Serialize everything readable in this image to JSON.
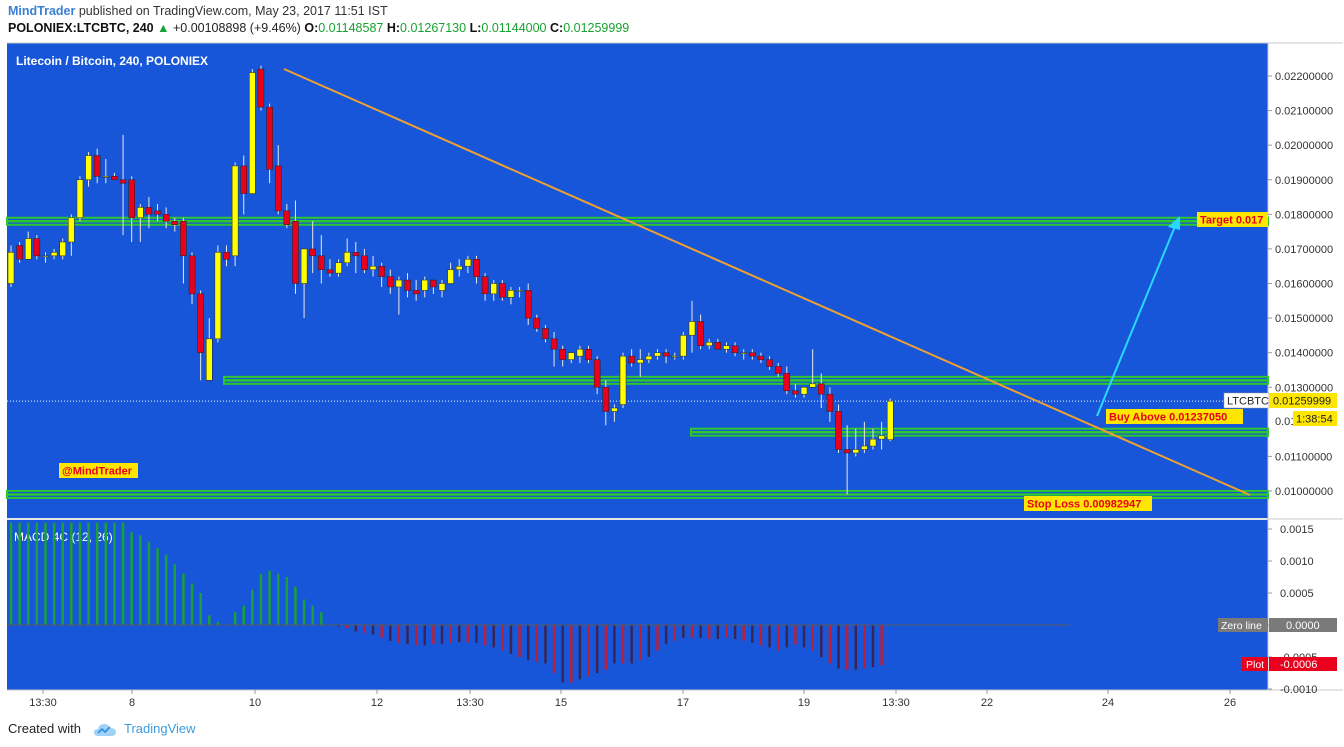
{
  "header": {
    "author": "MindTrader",
    "published_text": "published on TradingView.com, May 23, 2017 11:51 IST",
    "symbol_line": "POLONIEX:LTCBTC, 240",
    "change_arrow": "▲",
    "change": "+0.00108898 (+9.46%)",
    "open_label": "O:",
    "open": "0.01148587",
    "high_label": "H:",
    "high": "0.01267130",
    "low_label": "L:",
    "low": "0.01144000",
    "close_label": "C:",
    "close": "0.01259999"
  },
  "footer": {
    "created_with": "Created with",
    "brand": "TradingView"
  },
  "colors": {
    "background": "#1756d8",
    "candle_up": "#ffff00",
    "candle_down": "#e8001c",
    "sr_line": "#2ec72e",
    "trend_line": "#f0a030",
    "arrow": "#29d8ff",
    "macd_positive": "#1aa03a",
    "macd_negative_dark": "#3a2455",
    "macd_negative_red": "#b8203a"
  },
  "chart_data": [
    {
      "type": "candlestick",
      "title": "Litecoin / Bitcoin, 240, POLONIEX",
      "x_tick_labels": [
        "13:30",
        "8",
        "10",
        "12",
        "13:30",
        "15",
        "17",
        "19",
        "13:30",
        "22",
        "24",
        "26"
      ],
      "ylim": [
        0.0096,
        0.0228
      ],
      "y_tick_labels": [
        "0.02200000",
        "0.02100000",
        "0.02000000",
        "0.01900000",
        "0.01800000",
        "0.01700000",
        "0.01600000",
        "0.01500000",
        "0.01400000",
        "0.01300000",
        "0.01100000",
        "0.01000000"
      ],
      "y_ticks": [
        0.022,
        0.021,
        0.02,
        0.019,
        0.018,
        0.017,
        0.016,
        0.015,
        0.014,
        0.013,
        0.011,
        0.01
      ],
      "grid": false,
      "candles": [
        [
          0.016,
          0.0171,
          0.0159,
          0.0169
        ],
        [
          0.0171,
          0.0172,
          0.0166,
          0.0167
        ],
        [
          0.0167,
          0.0175,
          0.0167,
          0.0173
        ],
        [
          0.0173,
          0.0174,
          0.0167,
          0.0168
        ],
        [
          0.0168,
          0.0169,
          0.0166,
          0.0168
        ],
        [
          0.0168,
          0.017,
          0.0167,
          0.0169
        ],
        [
          0.0168,
          0.0173,
          0.0167,
          0.0172
        ],
        [
          0.0172,
          0.018,
          0.0168,
          0.0179
        ],
        [
          0.0179,
          0.0191,
          0.0178,
          0.019
        ],
        [
          0.019,
          0.0198,
          0.0188,
          0.0197
        ],
        [
          0.0197,
          0.0199,
          0.0189,
          0.0191
        ],
        [
          0.0191,
          0.0196,
          0.0189,
          0.0191
        ],
        [
          0.0191,
          0.0192,
          0.019,
          0.019
        ],
        [
          0.019,
          0.0203,
          0.0174,
          0.0189
        ],
        [
          0.019,
          0.0191,
          0.0172,
          0.0179
        ],
        [
          0.0179,
          0.0183,
          0.0172,
          0.0182
        ],
        [
          0.0182,
          0.0185,
          0.0176,
          0.018
        ],
        [
          0.0181,
          0.0183,
          0.0178,
          0.018
        ],
        [
          0.018,
          0.0182,
          0.0176,
          0.0178
        ],
        [
          0.0178,
          0.0179,
          0.0175,
          0.0177
        ],
        [
          0.0178,
          0.0179,
          0.016,
          0.0168
        ],
        [
          0.0168,
          0.0169,
          0.0154,
          0.0157
        ],
        [
          0.0157,
          0.0158,
          0.0132,
          0.014
        ],
        [
          0.0132,
          0.015,
          0.0132,
          0.0144
        ],
        [
          0.0144,
          0.0171,
          0.0143,
          0.0169
        ],
        [
          0.0169,
          0.0171,
          0.0165,
          0.0167
        ],
        [
          0.0168,
          0.0195,
          0.0165,
          0.0194
        ],
        [
          0.0194,
          0.0197,
          0.018,
          0.0186
        ],
        [
          0.0186,
          0.0222,
          0.0186,
          0.0221
        ],
        [
          0.0222,
          0.0223,
          0.021,
          0.0211
        ],
        [
          0.0211,
          0.0212,
          0.0189,
          0.0193
        ],
        [
          0.0194,
          0.02,
          0.018,
          0.0181
        ],
        [
          0.0181,
          0.0183,
          0.0176,
          0.0177
        ],
        [
          0.0178,
          0.0184,
          0.0157,
          0.016
        ],
        [
          0.016,
          0.017,
          0.015,
          0.017
        ],
        [
          0.017,
          0.0178,
          0.0163,
          0.0168
        ],
        [
          0.0168,
          0.0174,
          0.016,
          0.0164
        ],
        [
          0.0164,
          0.0167,
          0.0162,
          0.0163
        ],
        [
          0.0163,
          0.0167,
          0.0162,
          0.0166
        ],
        [
          0.0166,
          0.0173,
          0.0165,
          0.0169
        ],
        [
          0.0169,
          0.0172,
          0.0163,
          0.0168
        ],
        [
          0.0168,
          0.017,
          0.0163,
          0.0164
        ],
        [
          0.0164,
          0.0168,
          0.0162,
          0.0165
        ],
        [
          0.0165,
          0.0166,
          0.0159,
          0.0162
        ],
        [
          0.0162,
          0.0164,
          0.0157,
          0.0159
        ],
        [
          0.0159,
          0.0162,
          0.0151,
          0.0161
        ],
        [
          0.0161,
          0.0163,
          0.0156,
          0.0158
        ],
        [
          0.0158,
          0.0161,
          0.0155,
          0.0157
        ],
        [
          0.0158,
          0.0162,
          0.0156,
          0.0161
        ],
        [
          0.0161,
          0.0161,
          0.0157,
          0.0159
        ],
        [
          0.0158,
          0.0161,
          0.0156,
          0.016
        ],
        [
          0.016,
          0.0166,
          0.016,
          0.0164
        ],
        [
          0.0164,
          0.0167,
          0.0162,
          0.0165
        ],
        [
          0.0165,
          0.0168,
          0.0163,
          0.0167
        ],
        [
          0.0167,
          0.0168,
          0.016,
          0.0162
        ],
        [
          0.0162,
          0.0163,
          0.0155,
          0.0157
        ],
        [
          0.0157,
          0.0161,
          0.0155,
          0.016
        ],
        [
          0.016,
          0.0161,
          0.0155,
          0.0156
        ],
        [
          0.0156,
          0.0159,
          0.0154,
          0.0158
        ],
        [
          0.0158,
          0.0159,
          0.0156,
          0.0158
        ],
        [
          0.0158,
          0.016,
          0.0148,
          0.015
        ],
        [
          0.015,
          0.0151,
          0.0146,
          0.0147
        ],
        [
          0.0147,
          0.0148,
          0.0143,
          0.0144
        ],
        [
          0.0144,
          0.0146,
          0.0136,
          0.0141
        ],
        [
          0.0141,
          0.0142,
          0.0136,
          0.0138
        ],
        [
          0.0138,
          0.014,
          0.0137,
          0.014
        ],
        [
          0.0139,
          0.0142,
          0.0137,
          0.0141
        ],
        [
          0.0141,
          0.0142,
          0.0137,
          0.0138
        ],
        [
          0.0138,
          0.0139,
          0.0128,
          0.013
        ],
        [
          0.013,
          0.0132,
          0.0119,
          0.0123
        ],
        [
          0.0123,
          0.0125,
          0.012,
          0.0124
        ],
        [
          0.0125,
          0.014,
          0.0124,
          0.0139
        ],
        [
          0.0139,
          0.0141,
          0.0136,
          0.0137
        ],
        [
          0.0137,
          0.0141,
          0.0133,
          0.0138
        ],
        [
          0.0138,
          0.014,
          0.0137,
          0.0139
        ],
        [
          0.0139,
          0.0141,
          0.0138,
          0.014
        ],
        [
          0.014,
          0.0141,
          0.0137,
          0.0139
        ],
        [
          0.0139,
          0.014,
          0.0138,
          0.0139
        ],
        [
          0.0139,
          0.0146,
          0.0138,
          0.0145
        ],
        [
          0.0145,
          0.0155,
          0.014,
          0.0149
        ],
        [
          0.0149,
          0.0151,
          0.0141,
          0.0142
        ],
        [
          0.0142,
          0.0144,
          0.0141,
          0.0143
        ],
        [
          0.0143,
          0.0144,
          0.0141,
          0.0141
        ],
        [
          0.0141,
          0.0143,
          0.014,
          0.0142
        ],
        [
          0.0142,
          0.0143,
          0.0139,
          0.014
        ],
        [
          0.014,
          0.0141,
          0.0138,
          0.014
        ],
        [
          0.014,
          0.0141,
          0.0138,
          0.0139
        ],
        [
          0.0139,
          0.014,
          0.0137,
          0.0138
        ],
        [
          0.0138,
          0.0139,
          0.0135,
          0.0136
        ],
        [
          0.0136,
          0.0137,
          0.0133,
          0.0134
        ],
        [
          0.0134,
          0.0136,
          0.0128,
          0.0129
        ],
        [
          0.0129,
          0.0131,
          0.0127,
          0.0128
        ],
        [
          0.0128,
          0.013,
          0.0127,
          0.013
        ],
        [
          0.013,
          0.0141,
          0.013,
          0.0131
        ],
        [
          0.0131,
          0.0134,
          0.0124,
          0.0128
        ],
        [
          0.0128,
          0.013,
          0.012,
          0.0123
        ],
        [
          0.0123,
          0.0125,
          0.0111,
          0.0112
        ],
        [
          0.0112,
          0.0119,
          0.0099,
          0.0111
        ],
        [
          0.0111,
          0.0118,
          0.011,
          0.0112
        ],
        [
          0.0112,
          0.012,
          0.0111,
          0.0113
        ],
        [
          0.0113,
          0.0118,
          0.0112,
          0.0115
        ],
        [
          0.0115,
          0.012,
          0.0112,
          0.0116
        ],
        [
          0.01148587,
          0.0126713,
          0.01144,
          0.01259999
        ]
      ],
      "horizontal_levels": [
        0.0178,
        0.0132,
        0.0117,
        0.0099
      ],
      "price_labels": {
        "target": "Target 0.017",
        "buy_above": "Buy Above 0.01237050",
        "stop_loss": "Stop Loss 0.00982947",
        "last_symbol": "LTCBTC",
        "last_price": "0.01259999",
        "countdown": "1:38:54",
        "partial_tick": "0.01",
        "watermark": "@MindTrader"
      }
    },
    {
      "type": "bar",
      "title": "MACD 4C (12, 26)",
      "ylim": [
        -0.0012,
        0.0017
      ],
      "y_tick_labels": [
        "0.0015",
        "0.0010",
        "0.0005",
        "0.0000",
        "-0.0005",
        "-0.0010"
      ],
      "y_ticks": [
        0.0015,
        0.001,
        0.0005,
        0.0,
        -0.0005,
        -0.001
      ],
      "zero_line_label": "Zero line",
      "zero_value": "0.0000",
      "plot_label": "Plot",
      "plot_value": "-0.0006",
      "values": [
        0.0016,
        0.0016,
        0.0016,
        0.0016,
        0.0016,
        0.0016,
        0.0016,
        0.0016,
        0.0016,
        0.0016,
        0.0016,
        0.0016,
        0.0016,
        0.0016,
        0.00145,
        0.0014,
        0.0013,
        0.0012,
        0.0011,
        0.00095,
        0.0008,
        0.00065,
        0.0005,
        0.00015,
        5e-05,
        0.0,
        0.0002,
        0.0003,
        0.00055,
        0.0008,
        0.00085,
        0.0008,
        0.00075,
        0.0006,
        0.0004,
        0.0003,
        0.0002,
        0.0,
        -2e-05,
        -5e-05,
        -0.0001,
        -0.00013,
        -0.00015,
        -0.0002,
        -0.00025,
        -0.00028,
        -0.0003,
        -0.00032,
        -0.00032,
        -0.0003,
        -0.0003,
        -0.00028,
        -0.00027,
        -0.00027,
        -0.00028,
        -0.00032,
        -0.00035,
        -0.0004,
        -0.00045,
        -0.0005,
        -0.00055,
        -0.00058,
        -0.0006,
        -0.00075,
        -0.0009,
        -0.0009,
        -0.00085,
        -0.0008,
        -0.00075,
        -0.0007,
        -0.0006,
        -0.0006,
        -0.0006,
        -0.00055,
        -0.0005,
        -0.0004,
        -0.0003,
        -0.00025,
        -0.0002,
        -0.0002,
        -0.0002,
        -0.00022,
        -0.00022,
        -0.0002,
        -0.00022,
        -0.00024,
        -0.00028,
        -0.00032,
        -0.00035,
        -0.0004,
        -0.00035,
        -0.0003,
        -0.00035,
        -0.0004,
        -0.0005,
        -0.0006,
        -0.00068,
        -0.0007,
        -0.0007,
        -0.00068,
        -0.00066,
        -0.00063
      ]
    }
  ]
}
